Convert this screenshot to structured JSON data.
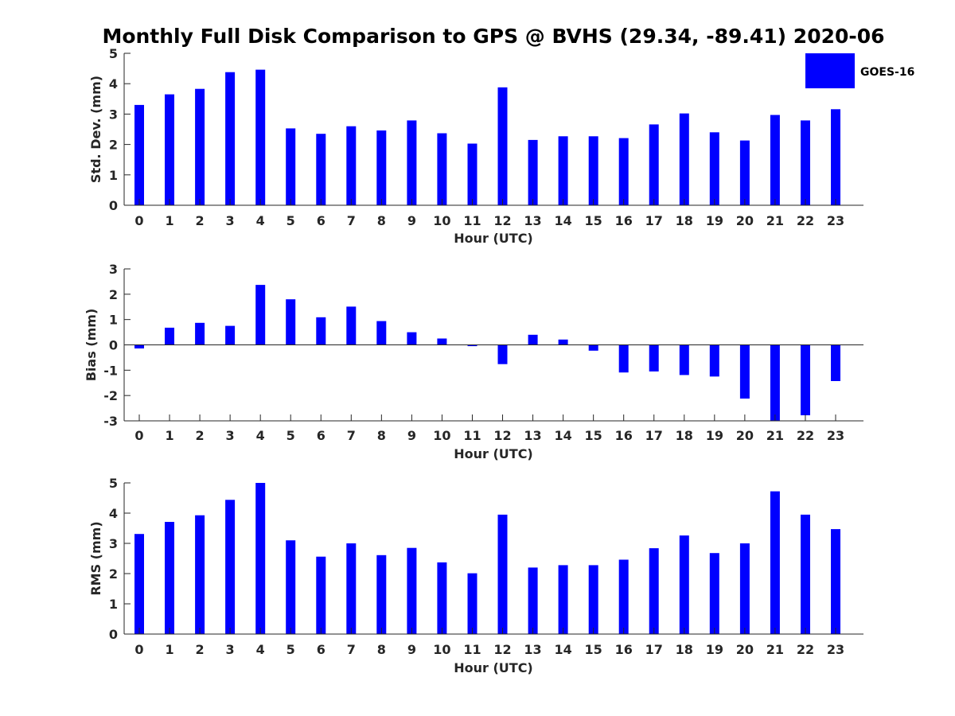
{
  "title": "Monthly Full Disk Comparison to GPS @ BVHS (29.34, -89.41) 2020-06",
  "legend": {
    "label": "GOES-16",
    "color": "#0000ff"
  },
  "bar_color": "#0000ff",
  "chart_data": [
    {
      "type": "bar",
      "title": "Monthly Full Disk Comparison to GPS @ BVHS (29.34, -89.41) 2020-06",
      "xlabel": "Hour (UTC)",
      "ylabel": "Std. Dev. (mm)",
      "ylim": [
        0,
        5
      ],
      "yticks": [
        "0",
        "1",
        "2",
        "3",
        "4",
        "5"
      ],
      "categories": [
        "0",
        "1",
        "2",
        "3",
        "4",
        "5",
        "6",
        "7",
        "8",
        "9",
        "10",
        "11",
        "12",
        "13",
        "14",
        "15",
        "16",
        "17",
        "18",
        "19",
        "20",
        "21",
        "22",
        "23"
      ],
      "series": [
        {
          "name": "GOES-16",
          "values": [
            3.3,
            3.65,
            3.83,
            4.38,
            4.46,
            2.53,
            2.35,
            2.6,
            2.46,
            2.79,
            2.37,
            2.03,
            3.88,
            2.15,
            2.27,
            2.27,
            2.21,
            2.66,
            3.02,
            2.4,
            2.13,
            2.97,
            2.79,
            3.16
          ]
        }
      ],
      "legend": "top-right",
      "grid": false
    },
    {
      "type": "bar",
      "xlabel": "Hour (UTC)",
      "ylabel": "Bias (mm)",
      "ylim": [
        -3,
        3
      ],
      "yticks": [
        "-3",
        "-2",
        "-1",
        "0",
        "1",
        "2",
        "3"
      ],
      "categories": [
        "0",
        "1",
        "2",
        "3",
        "4",
        "5",
        "6",
        "7",
        "8",
        "9",
        "10",
        "11",
        "12",
        "13",
        "14",
        "15",
        "16",
        "17",
        "18",
        "19",
        "20",
        "21",
        "22",
        "23"
      ],
      "series": [
        {
          "name": "GOES-16",
          "values": [
            -0.14,
            0.68,
            0.87,
            0.75,
            2.37,
            1.8,
            1.09,
            1.51,
            0.94,
            0.5,
            0.25,
            -0.05,
            -0.76,
            0.4,
            0.21,
            -0.23,
            -1.09,
            -1.05,
            -1.19,
            -1.25,
            -2.12,
            -3.0,
            -2.78,
            -1.43
          ]
        }
      ],
      "grid": false
    },
    {
      "type": "bar",
      "xlabel": "Hour (UTC)",
      "ylabel": "RMS (mm)",
      "ylim": [
        0,
        5
      ],
      "yticks": [
        "0",
        "1",
        "2",
        "3",
        "4",
        "5"
      ],
      "categories": [
        "0",
        "1",
        "2",
        "3",
        "4",
        "5",
        "6",
        "7",
        "8",
        "9",
        "10",
        "11",
        "12",
        "13",
        "14",
        "15",
        "16",
        "17",
        "18",
        "19",
        "20",
        "21",
        "22",
        "23"
      ],
      "series": [
        {
          "name": "GOES-16",
          "values": [
            3.31,
            3.71,
            3.93,
            4.44,
            5.0,
            3.1,
            2.56,
            3.0,
            2.61,
            2.85,
            2.37,
            2.01,
            3.95,
            2.2,
            2.28,
            2.28,
            2.46,
            2.84,
            3.26,
            2.68,
            3.0,
            4.72,
            3.95,
            3.47
          ]
        }
      ],
      "grid": false
    }
  ]
}
